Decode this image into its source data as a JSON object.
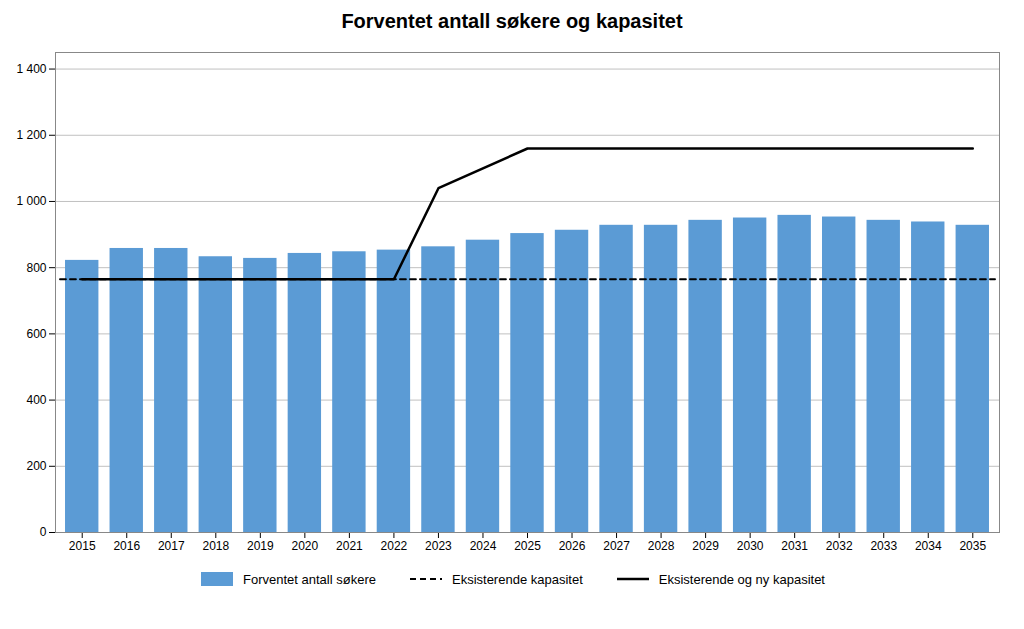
{
  "chart_data": {
    "type": "bar",
    "title": "Forventet antall søkere og kapasitet",
    "x": [
      2015,
      2016,
      2017,
      2018,
      2019,
      2020,
      2021,
      2022,
      2023,
      2024,
      2025,
      2026,
      2027,
      2028,
      2029,
      2030,
      2031,
      2032,
      2033,
      2034,
      2035
    ],
    "xlim": [
      2014.4,
      2035.6
    ],
    "xticks": [
      2015,
      2016,
      2017,
      2018,
      2019,
      2020,
      2021,
      2022,
      2023,
      2024,
      2025,
      2026,
      2027,
      2028,
      2029,
      2030,
      2031,
      2032,
      2033,
      2034,
      2035
    ],
    "ylim": [
      0,
      1450
    ],
    "yticks": [
      0,
      200,
      400,
      600,
      800,
      {
        "value": 1000,
        "label": "1 000"
      },
      {
        "value": 1200,
        "label": "1 200"
      },
      {
        "value": 1400,
        "label": "1 400"
      }
    ],
    "grid": true,
    "legend": "bottom",
    "series": [
      {
        "name": "Forventet antall søkere",
        "type": "bar",
        "color": "#5B9BD5",
        "values": [
          822,
          858,
          858,
          833,
          828,
          843,
          848,
          853,
          863,
          883,
          903,
          913,
          928,
          928,
          943,
          950,
          958,
          953,
          943,
          938,
          928
        ]
      },
      {
        "name": "Eksisterende kapasitet",
        "type": "line",
        "color": "#000000",
        "line_style": "dashed",
        "x": [
          2014.5,
          2035.5
        ],
        "values": [
          765,
          765
        ]
      },
      {
        "name": "Eksisterende og ny kapasitet",
        "type": "line",
        "color": "#000000",
        "line_style": "solid",
        "x": [
          2015,
          2022,
          2023,
          2025,
          2035
        ],
        "values": [
          765,
          765,
          1040,
          1160,
          1160
        ]
      }
    ]
  }
}
